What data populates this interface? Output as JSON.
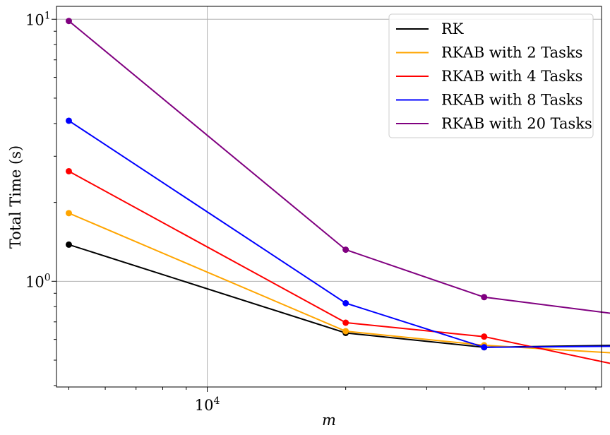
{
  "chart_data": {
    "type": "line",
    "title": "",
    "xlabel": "m",
    "ylabel": "Total Time (s)",
    "xscale": "log",
    "yscale": "log",
    "xlim": [
      4700,
      72000
    ],
    "ylim": [
      0.395,
      11.2
    ],
    "x": [
      5000,
      20000,
      40000,
      80000
    ],
    "x_major_ticks": [
      {
        "value": 10000,
        "base": "10",
        "exp": "4"
      }
    ],
    "y_major_ticks": [
      {
        "value": 1,
        "base": "10",
        "exp": "0"
      },
      {
        "value": 10,
        "base": "10",
        "exp": "1"
      }
    ],
    "grid": true,
    "legend_position": "top-right",
    "series": [
      {
        "name": "RK",
        "color": "#000000",
        "values": [
          1.38,
          0.635,
          0.56,
          0.57
        ]
      },
      {
        "name": "RKAB with 2 Tasks",
        "color": "#ffa500",
        "values": [
          1.82,
          0.645,
          0.57,
          0.53
        ]
      },
      {
        "name": "RKAB with 4 Tasks",
        "color": "#ff0000",
        "values": [
          2.63,
          0.695,
          0.615,
          0.475
        ]
      },
      {
        "name": "RKAB with 8 Tasks",
        "color": "#0000ff",
        "values": [
          4.1,
          0.825,
          0.56,
          0.565
        ]
      },
      {
        "name": "RKAB with 20 Tasks",
        "color": "#800080",
        "values": [
          9.85,
          1.32,
          0.87,
          0.745
        ]
      }
    ]
  }
}
